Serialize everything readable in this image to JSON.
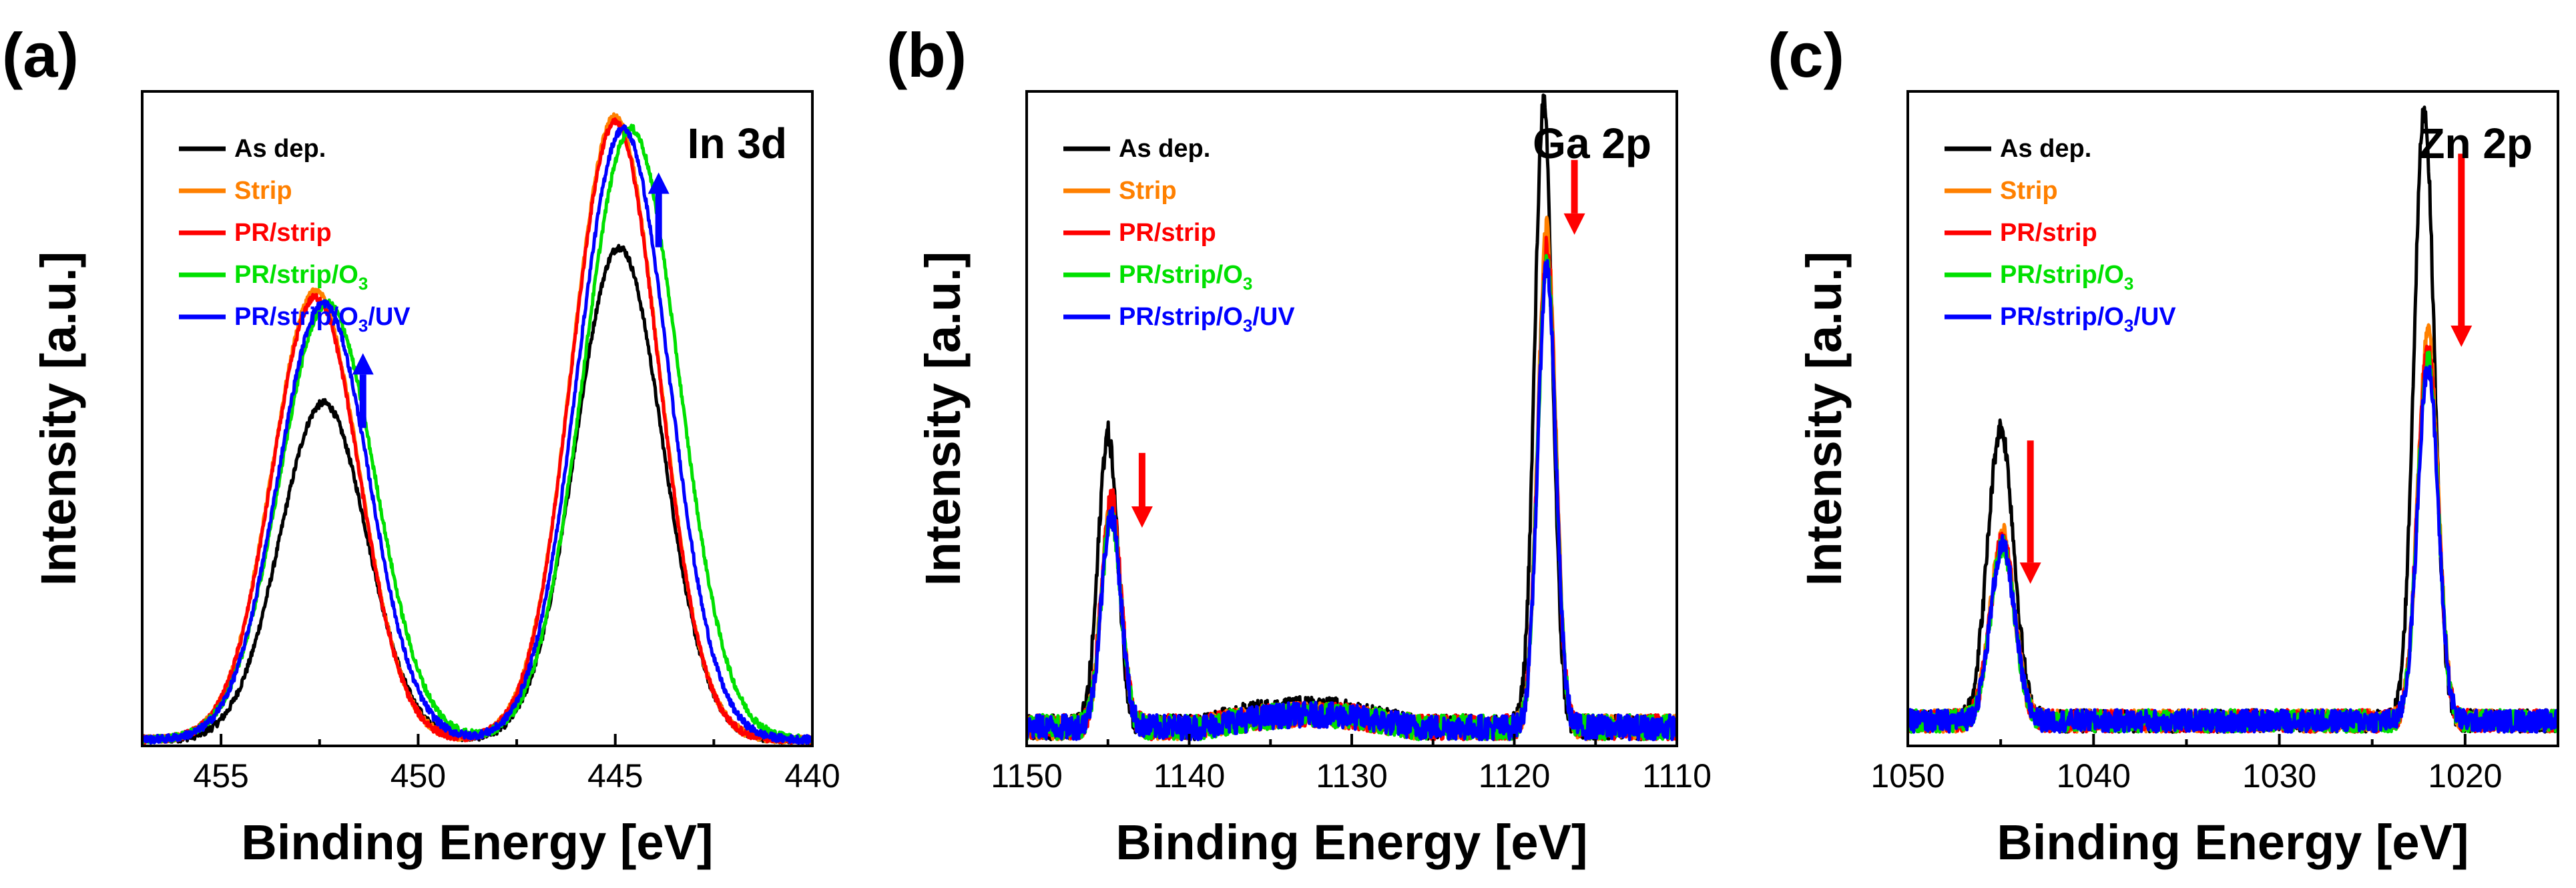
{
  "chart_data": [
    {
      "type": "line",
      "panel_label": "(a)",
      "title": "In 3d",
      "xlabel": "Binding Energy [eV]",
      "ylabel": "Intensity [a.u.]",
      "xlim": [
        457,
        440
      ],
      "ylim": [
        0,
        1.05
      ],
      "x_reversed": true,
      "xticks": [
        455,
        450,
        445,
        440
      ],
      "xtick_labels": [
        "455",
        "450",
        "445",
        "440"
      ],
      "noise": 0.006,
      "colors": {
        "As dep.": "#000000",
        "Strip": "#ff8000",
        "PR/strip": "#ff0000",
        "PR/strip/O3": "#00e000",
        "PR/strip/O3/UV": "#0000ff"
      },
      "series": [
        {
          "name": "As dep.",
          "baseline": 0.01,
          "peaks": [
            {
              "center": 452.4,
              "height": 0.54,
              "width": 1.1
            },
            {
              "center": 444.9,
              "height": 0.79,
              "width": 1.1
            }
          ]
        },
        {
          "name": "Strip",
          "baseline": 0.01,
          "peaks": [
            {
              "center": 452.6,
              "height": 0.72,
              "width": 1.1
            },
            {
              "center": 445.0,
              "height": 1.0,
              "width": 1.1
            }
          ]
        },
        {
          "name": "PR/strip",
          "baseline": 0.01,
          "peaks": [
            {
              "center": 452.6,
              "height": 0.71,
              "width": 1.1
            },
            {
              "center": 445.0,
              "height": 0.99,
              "width": 1.1
            }
          ]
        },
        {
          "name": "PR/strip/O3",
          "baseline": 0.01,
          "peaks": [
            {
              "center": 452.3,
              "height": 0.7,
              "width": 1.2
            },
            {
              "center": 444.6,
              "height": 0.98,
              "width": 1.2
            }
          ]
        },
        {
          "name": "PR/strip/O3/UV",
          "baseline": 0.01,
          "peaks": [
            {
              "center": 452.4,
              "height": 0.7,
              "width": 1.15
            },
            {
              "center": 444.8,
              "height": 0.98,
              "width": 1.15
            }
          ]
        }
      ],
      "arrows": [
        {
          "x": 451.4,
          "y_from": 0.51,
          "y_to": 0.63,
          "color": "#0000ff"
        },
        {
          "x": 443.9,
          "y_from": 0.8,
          "y_to": 0.92,
          "color": "#0000ff"
        }
      ],
      "legend": [
        {
          "label": "As dep.",
          "color": "#000000",
          "main": "As dep.",
          "sub": "",
          "tail": ""
        },
        {
          "label": "Strip",
          "color": "#ff8000",
          "main": "Strip",
          "sub": "",
          "tail": ""
        },
        {
          "label": "PR/strip",
          "color": "#ff0000",
          "main": "PR/strip",
          "sub": "",
          "tail": ""
        },
        {
          "label": "PR/strip/O3",
          "color": "#00e000",
          "main": "PR/strip/O",
          "sub": "3",
          "tail": ""
        },
        {
          "label": "PR/strip/O3/UV",
          "color": "#0000ff",
          "main": "PR/strip/O",
          "sub": "3",
          "tail": "/UV"
        }
      ]
    },
    {
      "type": "line",
      "panel_label": "(b)",
      "title": "Ga 2p",
      "xlabel": "Binding Energy [eV]",
      "ylabel": "Intensity [a.u.]",
      "xlim": [
        1150,
        1110
      ],
      "ylim": [
        0,
        1.05
      ],
      "x_reversed": true,
      "xticks": [
        1150,
        1140,
        1130,
        1120,
        1110
      ],
      "xtick_labels": [
        "1150",
        "1140",
        "1130",
        "1120",
        "1110"
      ],
      "noise": 0.02,
      "colors": {
        "As dep.": "#000000",
        "Strip": "#ff8000",
        "PR/strip": "#ff0000",
        "PR/strip/O3": "#00e000",
        "PR/strip/O3/UV": "#0000ff"
      },
      "series": [
        {
          "name": "As dep.",
          "baseline": 0.03,
          "plateau": 0.03,
          "peaks": [
            {
              "center": 1145.0,
              "height": 0.47,
              "width": 0.6
            },
            {
              "center": 1118.2,
              "height": 1.0,
              "width": 0.55
            }
          ]
        },
        {
          "name": "Strip",
          "baseline": 0.03,
          "plateau": 0.02,
          "peaks": [
            {
              "center": 1144.8,
              "height": 0.36,
              "width": 0.6
            },
            {
              "center": 1118.0,
              "height": 0.8,
              "width": 0.55
            }
          ]
        },
        {
          "name": "PR/strip",
          "baseline": 0.03,
          "plateau": 0.02,
          "peaks": [
            {
              "center": 1144.8,
              "height": 0.37,
              "width": 0.6
            },
            {
              "center": 1118.0,
              "height": 0.77,
              "width": 0.55
            }
          ]
        },
        {
          "name": "PR/strip/O3",
          "baseline": 0.03,
          "plateau": 0.02,
          "peaks": [
            {
              "center": 1144.8,
              "height": 0.34,
              "width": 0.6
            },
            {
              "center": 1118.0,
              "height": 0.75,
              "width": 0.55
            }
          ]
        },
        {
          "name": "PR/strip/O3/UV",
          "baseline": 0.03,
          "plateau": 0.02,
          "peaks": [
            {
              "center": 1144.8,
              "height": 0.34,
              "width": 0.6
            },
            {
              "center": 1118.0,
              "height": 0.74,
              "width": 0.55
            }
          ]
        }
      ],
      "arrows": [
        {
          "x": 1142.9,
          "y_from": 0.47,
          "y_to": 0.35,
          "color": "#ff0000"
        },
        {
          "x": 1116.3,
          "y_from": 0.94,
          "y_to": 0.82,
          "color": "#ff0000"
        }
      ],
      "legend": [
        {
          "label": "As dep.",
          "color": "#000000",
          "main": "As dep.",
          "sub": "",
          "tail": ""
        },
        {
          "label": "Strip",
          "color": "#ff8000",
          "main": "Strip",
          "sub": "",
          "tail": ""
        },
        {
          "label": "PR/strip",
          "color": "#ff0000",
          "main": "PR/strip",
          "sub": "",
          "tail": ""
        },
        {
          "label": "PR/strip/O3",
          "color": "#00e000",
          "main": "PR/strip/O",
          "sub": "3",
          "tail": ""
        },
        {
          "label": "PR/strip/O3/UV",
          "color": "#0000ff",
          "main": "PR/strip/O",
          "sub": "3",
          "tail": "/UV"
        }
      ]
    },
    {
      "type": "line",
      "panel_label": "(c)",
      "title": "Zn 2p",
      "xlabel": "Binding Energy [eV]",
      "ylabel": "Intensity [a.u.]",
      "xlim": [
        1050,
        1015
      ],
      "ylim": [
        0,
        1.05
      ],
      "x_reversed": true,
      "xticks": [
        1050,
        1040,
        1030,
        1020
      ],
      "xtick_labels": [
        "1050",
        "1040",
        "1030",
        "1020"
      ],
      "noise": 0.018,
      "colors": {
        "As dep.": "#000000",
        "Strip": "#ff8000",
        "PR/strip": "#ff0000",
        "PR/strip/O3": "#00e000",
        "PR/strip/O3/UV": "#0000ff"
      },
      "series": [
        {
          "name": "As dep.",
          "baseline": 0.04,
          "plateau": 0.0,
          "peaks": [
            {
              "center": 1045.0,
              "height": 0.47,
              "width": 0.7
            },
            {
              "center": 1022.2,
              "height": 0.98,
              "width": 0.55
            }
          ]
        },
        {
          "name": "Strip",
          "baseline": 0.04,
          "plateau": 0.0,
          "peaks": [
            {
              "center": 1044.9,
              "height": 0.3,
              "width": 0.65
            },
            {
              "center": 1022.0,
              "height": 0.62,
              "width": 0.55
            }
          ]
        },
        {
          "name": "PR/strip",
          "baseline": 0.04,
          "plateau": 0.0,
          "peaks": [
            {
              "center": 1044.9,
              "height": 0.29,
              "width": 0.65
            },
            {
              "center": 1022.0,
              "height": 0.6,
              "width": 0.55
            }
          ]
        },
        {
          "name": "PR/strip/O3",
          "baseline": 0.04,
          "plateau": 0.0,
          "peaks": [
            {
              "center": 1044.9,
              "height": 0.28,
              "width": 0.65
            },
            {
              "center": 1022.0,
              "height": 0.58,
              "width": 0.55
            }
          ]
        },
        {
          "name": "PR/strip/O3/UV",
          "baseline": 0.04,
          "plateau": 0.0,
          "peaks": [
            {
              "center": 1044.9,
              "height": 0.28,
              "width": 0.65
            },
            {
              "center": 1022.0,
              "height": 0.57,
              "width": 0.55
            }
          ]
        }
      ],
      "arrows": [
        {
          "x": 1043.4,
          "y_from": 0.49,
          "y_to": 0.26,
          "color": "#ff0000"
        },
        {
          "x": 1020.2,
          "y_from": 0.95,
          "y_to": 0.64,
          "color": "#ff0000"
        }
      ],
      "legend": [
        {
          "label": "As dep.",
          "color": "#000000",
          "main": "As dep.",
          "sub": "",
          "tail": ""
        },
        {
          "label": "Strip",
          "color": "#ff8000",
          "main": "Strip",
          "sub": "",
          "tail": ""
        },
        {
          "label": "PR/strip",
          "color": "#ff0000",
          "main": "PR/strip",
          "sub": "",
          "tail": ""
        },
        {
          "label": "PR/strip/O3",
          "color": "#00e000",
          "main": "PR/strip/O",
          "sub": "3",
          "tail": ""
        },
        {
          "label": "PR/strip/O3/UV",
          "color": "#0000ff",
          "main": "PR/strip/O",
          "sub": "3",
          "tail": "/UV"
        }
      ]
    }
  ]
}
